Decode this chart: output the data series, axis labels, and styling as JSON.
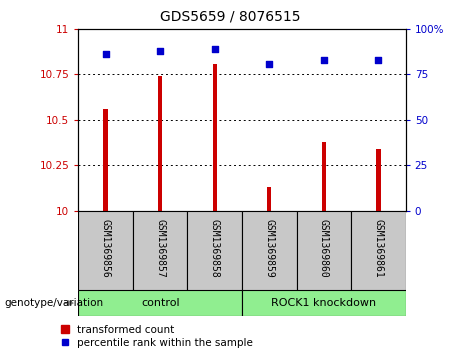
{
  "title": "GDS5659 / 8076515",
  "samples": [
    "GSM1369856",
    "GSM1369857",
    "GSM1369858",
    "GSM1369859",
    "GSM1369860",
    "GSM1369861"
  ],
  "transformed_counts": [
    10.56,
    10.74,
    10.81,
    10.13,
    10.38,
    10.34
  ],
  "percentile_ranks": [
    86,
    88,
    89,
    81,
    83,
    83
  ],
  "ylim_left": [
    10,
    11
  ],
  "ylim_right": [
    0,
    100
  ],
  "yticks_left": [
    10,
    10.25,
    10.5,
    10.75,
    11
  ],
  "yticks_right": [
    0,
    25,
    50,
    75,
    100
  ],
  "ytick_labels_left": [
    "10",
    "10.25",
    "10.5",
    "10.75",
    "11"
  ],
  "ytick_labels_right": [
    "0",
    "25",
    "50",
    "75",
    "100%"
  ],
  "bar_color": "#cc0000",
  "dot_color": "#0000cc",
  "bar_width": 0.08,
  "label_color_left": "#cc0000",
  "label_color_right": "#0000cc",
  "sample_box_color": "#c8c8c8",
  "group_box_color": "#90ee90",
  "control_label": "control",
  "knockdown_label": "ROCK1 knockdown",
  "genotype_label": "genotype/variation",
  "legend_bar_label": "transformed count",
  "legend_dot_label": "percentile rank within the sample"
}
